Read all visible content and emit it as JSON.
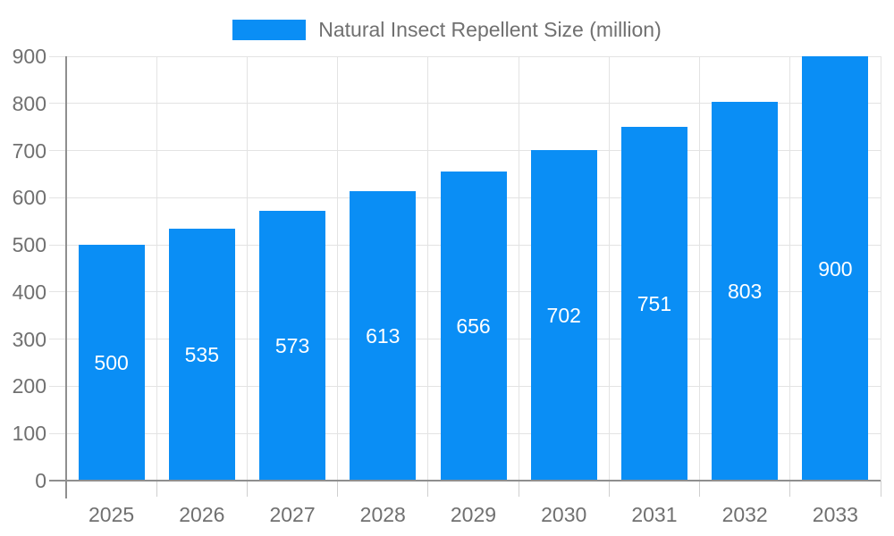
{
  "chart_data": {
    "type": "bar",
    "title": "Natural Insect Repellent Size (million)",
    "categories": [
      "2025",
      "2026",
      "2027",
      "2028",
      "2029",
      "2030",
      "2031",
      "2032",
      "2033"
    ],
    "series": [
      {
        "name": "Natural Insect Repellent Size (million)",
        "values": [
          500,
          535,
          573,
          613,
          656,
          702,
          751,
          803,
          900
        ]
      }
    ],
    "xlabel": "",
    "ylabel": "",
    "ylim": [
      0,
      900
    ],
    "yticks": [
      0,
      100,
      200,
      300,
      400,
      500,
      600,
      700,
      800,
      900
    ],
    "grid": true,
    "legend_position": "top-center",
    "value_labels": "inside-center",
    "colors": {
      "bar": "#0a8ef5",
      "value_label": "#ffffff",
      "grid": "#e3e3e3",
      "axis": "#8f8f8f",
      "minor_tick": "#cfcfcf",
      "tick_label": "#707070",
      "background": "#ffffff"
    }
  }
}
